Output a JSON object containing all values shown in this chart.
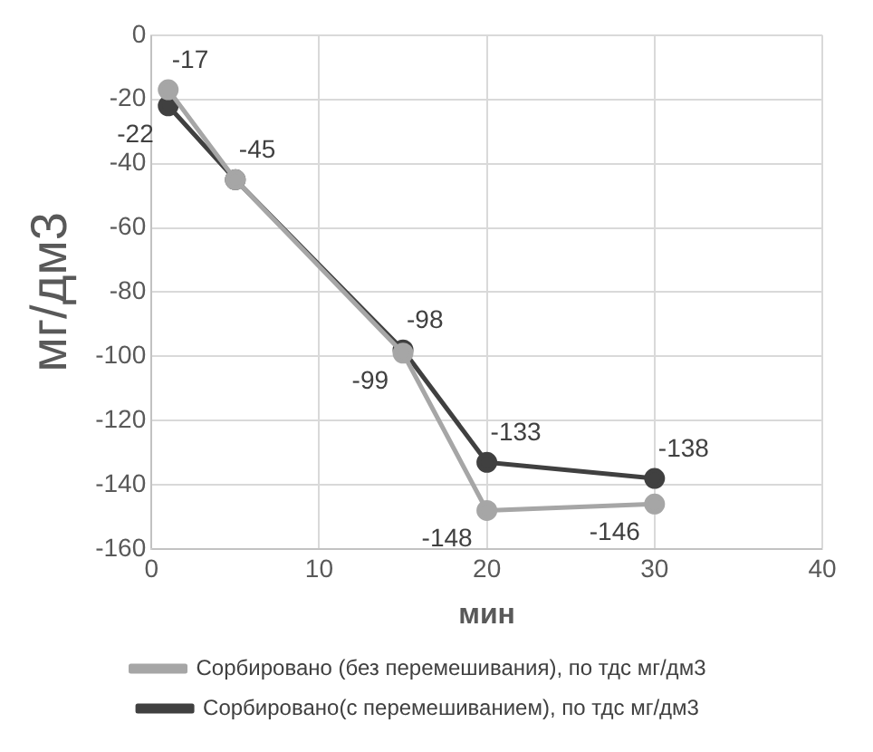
{
  "chart_data": {
    "type": "line",
    "xlabel": "мин",
    "ylabel": "мг/дм3",
    "x": [
      1,
      5,
      15,
      20,
      30
    ],
    "series": [
      {
        "name": "Сорбировано(с перемешиванием), по тдс мг/дм3",
        "color": "#404040",
        "values": [
          -22,
          -45,
          -98,
          -133,
          -138
        ],
        "value_labels": [
          "-22",
          "-45",
          "-98",
          "-133",
          "-138"
        ]
      },
      {
        "name": "Сорбировано (без перемешивания), по тдс мг/дм3",
        "color": "#a6a6a6",
        "values": [
          -17,
          -45,
          -99,
          -148,
          -146
        ],
        "value_labels": [
          "-17",
          null,
          "-99",
          "-148",
          "-146"
        ]
      }
    ],
    "xlim": [
      0,
      40
    ],
    "xticks": [
      0,
      10,
      20,
      30,
      40
    ],
    "ylim": [
      -160,
      0
    ],
    "yticks": [
      -160,
      -140,
      -120,
      -100,
      -80,
      -60,
      -40,
      -20,
      0
    ],
    "grid": true,
    "legend": "bottom",
    "marker": "circle",
    "line_style": "solid"
  }
}
